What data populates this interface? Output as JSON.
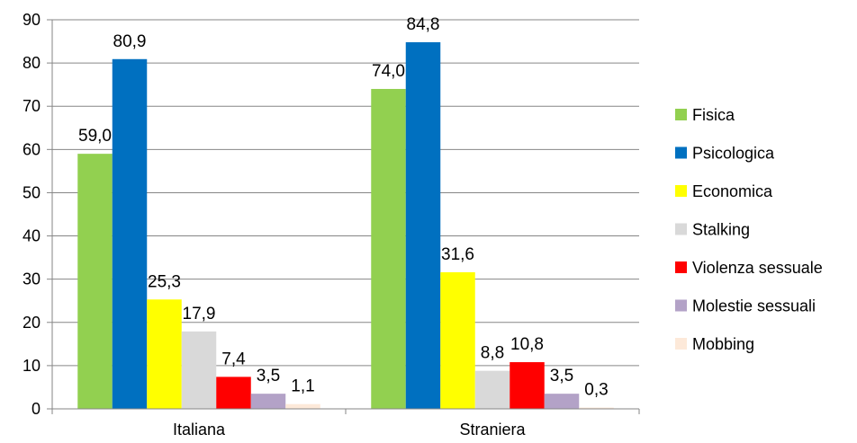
{
  "chart_data": {
    "type": "bar",
    "categories": [
      "Italiana",
      "Straniera"
    ],
    "series": [
      {
        "name": "Fisica",
        "color": "#92D050",
        "values": [
          59.0,
          74.0
        ],
        "labels": [
          "59,0",
          "74,0"
        ]
      },
      {
        "name": "Psicologica",
        "color": "#0070C0",
        "values": [
          80.9,
          84.8
        ],
        "labels": [
          "80,9",
          "84,8"
        ]
      },
      {
        "name": "Economica",
        "color": "#FFFF00",
        "values": [
          25.3,
          31.6
        ],
        "labels": [
          "25,3",
          "31,6"
        ]
      },
      {
        "name": "Stalking",
        "color": "#D9D9D9",
        "values": [
          17.9,
          8.8
        ],
        "labels": [
          "17,9",
          "8,8"
        ]
      },
      {
        "name": "Violenza sessuale",
        "color": "#FF0000",
        "values": [
          7.4,
          10.8
        ],
        "labels": [
          "7,4",
          "10,8"
        ]
      },
      {
        "name": "Molestie sessuali",
        "color": "#B3A2C7",
        "values": [
          3.5,
          3.5
        ],
        "labels": [
          "3,5",
          "3,5"
        ]
      },
      {
        "name": "Mobbing",
        "color": "#FDE9D9",
        "values": [
          1.1,
          0.3
        ],
        "labels": [
          "1,1",
          "0,3"
        ]
      }
    ],
    "ylim": [
      0,
      90
    ],
    "yticks": [
      0,
      10,
      20,
      30,
      40,
      50,
      60,
      70,
      80,
      90
    ],
    "grid": true,
    "legend_position": "right",
    "title": "",
    "xlabel": "",
    "ylabel": ""
  }
}
